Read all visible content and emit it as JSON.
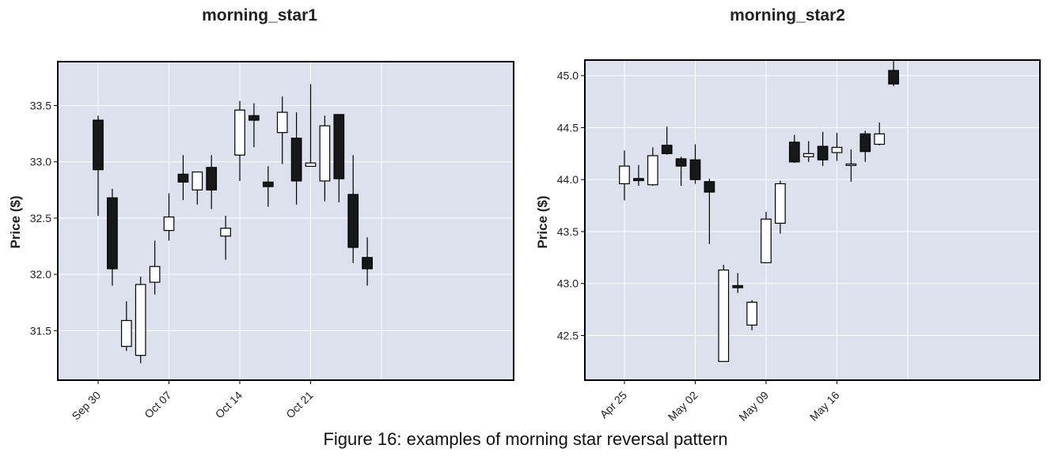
{
  "caption": "Figure 16: examples of morning star reversal pattern",
  "colors": {
    "background": "#dde1ee",
    "grid": "#ffffff",
    "up": "#ffffff",
    "down": "#181818",
    "edge": "#000000"
  },
  "chart_data": [
    {
      "type": "candlestick",
      "title": "morning_star1",
      "ylabel": "Price ($)",
      "xlabel": "",
      "grid": true,
      "ylim": [
        31.06,
        33.89
      ],
      "yticks": [
        31.5,
        32.0,
        32.5,
        33.0,
        33.5
      ],
      "yticklabels": [
        "31.5",
        "32.0",
        "32.5",
        "33.0",
        "33.5"
      ],
      "x": [
        "Sep 30",
        "Oct 01",
        "Oct 02",
        "Oct 03",
        "Oct 04",
        "Oct 07",
        "Oct 08",
        "Oct 09",
        "Oct 10",
        "Oct 11",
        "Oct 14",
        "Oct 15",
        "Oct 16",
        "Oct 17",
        "Oct 18",
        "Oct 21",
        "Oct 22",
        "Oct 23",
        "Oct 24",
        "Oct 25"
      ],
      "xticks": [
        "Sep 30",
        "Oct 07",
        "Oct 14",
        "Oct 21"
      ],
      "xticklabels": [
        "Sep 30",
        "Oct 07",
        "Oct 14",
        "Oct 21"
      ],
      "open": [
        33.37,
        32.68,
        31.36,
        31.28,
        31.93,
        32.39,
        32.89,
        32.75,
        32.95,
        32.34,
        33.06,
        33.41,
        32.82,
        33.26,
        33.21,
        32.96,
        32.83,
        33.42,
        32.71,
        32.15
      ],
      "high": [
        33.41,
        32.76,
        31.76,
        31.98,
        32.3,
        32.72,
        33.06,
        32.91,
        33.06,
        32.52,
        33.54,
        33.52,
        32.96,
        33.58,
        33.44,
        33.69,
        33.41,
        33.42,
        33.06,
        32.33
      ],
      "low": [
        32.52,
        31.9,
        31.32,
        31.21,
        31.82,
        32.3,
        32.66,
        32.62,
        32.58,
        32.13,
        32.83,
        33.13,
        32.6,
        32.98,
        32.62,
        32.96,
        32.65,
        32.64,
        32.1,
        31.9
      ],
      "close": [
        32.93,
        32.05,
        31.59,
        31.91,
        32.07,
        32.51,
        32.82,
        32.91,
        32.75,
        32.41,
        33.46,
        33.37,
        32.78,
        33.44,
        32.83,
        32.99,
        33.32,
        32.85,
        32.24,
        32.05
      ]
    },
    {
      "type": "candlestick",
      "title": "morning_star2",
      "ylabel": "Price ($)",
      "xlabel": "",
      "grid": true,
      "ylim": [
        42.07,
        45.15
      ],
      "yticks": [
        42.5,
        43.0,
        43.5,
        44.0,
        44.5,
        45.0
      ],
      "yticklabels": [
        "42.5",
        "43.0",
        "43.5",
        "44.0",
        "44.5",
        "45.0"
      ],
      "x": [
        "Apr 25",
        "Apr 26",
        "Apr 29",
        "Apr 30",
        "May 01",
        "May 02",
        "May 03",
        "May 06",
        "May 07",
        "May 08",
        "May 09",
        "May 10",
        "May 13",
        "May 14",
        "May 15",
        "May 16",
        "May 17",
        "May 20",
        "May 21",
        "May 22"
      ],
      "xticks": [
        "Apr 25",
        "May 02",
        "May 09",
        "May 16"
      ],
      "xticklabels": [
        "Apr 25",
        "May 02",
        "May 09",
        "May 16"
      ],
      "open": [
        43.96,
        44.01,
        43.95,
        44.33,
        44.2,
        44.19,
        43.98,
        42.25,
        42.98,
        42.6,
        43.2,
        43.58,
        44.36,
        44.22,
        44.32,
        44.26,
        44.15,
        44.44,
        44.34,
        45.05
      ],
      "high": [
        44.28,
        44.14,
        44.31,
        44.51,
        44.22,
        44.34,
        44.01,
        43.18,
        43.1,
        42.84,
        43.69,
        43.99,
        44.43,
        44.37,
        44.46,
        44.45,
        44.29,
        44.47,
        44.55,
        45.14
      ],
      "low": [
        43.8,
        43.94,
        43.94,
        44.24,
        43.94,
        43.96,
        43.38,
        42.25,
        42.91,
        42.55,
        43.2,
        43.48,
        44.16,
        44.17,
        44.13,
        44.18,
        43.98,
        44.17,
        44.33,
        44.9
      ],
      "close": [
        44.13,
        43.99,
        44.23,
        44.25,
        44.13,
        44.0,
        43.88,
        43.13,
        42.96,
        42.82,
        43.62,
        43.96,
        44.17,
        44.25,
        44.19,
        44.31,
        44.15,
        44.27,
        44.44,
        44.92
      ]
    }
  ]
}
